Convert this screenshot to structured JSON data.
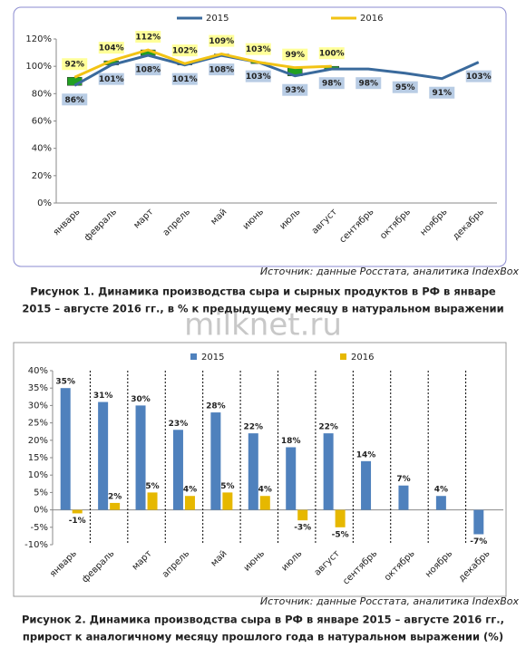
{
  "watermark": "milknet.ru",
  "chart_data": [
    {
      "type": "line",
      "categories": [
        "январь",
        "февраль",
        "март",
        "апрель",
        "май",
        "июнь",
        "июль",
        "август",
        "сентябрь",
        "октябрь",
        "ноябрь",
        "декабрь"
      ],
      "series": [
        {
          "name": "2015",
          "color": "#3a6a9c",
          "label_bg": "#b8cce4",
          "values": [
            86,
            101,
            108,
            101,
            108,
            103,
            93,
            98,
            98,
            95,
            91,
            103
          ],
          "value_labels": [
            "86%",
            "101%",
            "108%",
            "101%",
            "108%",
            "103%",
            "93%",
            "98%",
            "98%",
            "95%",
            "91%",
            "103%"
          ]
        },
        {
          "name": "2016",
          "color": "#f2c314",
          "label_bg": "#ffff99",
          "values": [
            92,
            104,
            112,
            102,
            109,
            103,
            99,
            100,
            null,
            null,
            null,
            null
          ],
          "value_labels": [
            "92%",
            "104%",
            "112%",
            "102%",
            "109%",
            "103%",
            "99%",
            "100%",
            null,
            null,
            null,
            null
          ]
        }
      ],
      "up_color": "#22a022",
      "down_color": "#e01010",
      "ylim": [
        0,
        120
      ],
      "yticks": [
        {
          "value": 0,
          "label": "0%"
        },
        {
          "value": 20,
          "label": "20%"
        },
        {
          "value": 40,
          "label": "40%"
        },
        {
          "value": 60,
          "label": "60%"
        },
        {
          "value": 80,
          "label": "80%"
        },
        {
          "value": 100,
          "label": "100%"
        },
        {
          "value": 120,
          "label": "120%"
        }
      ],
      "grid": false,
      "source": "Источник: данные Росстата, аналитика IndexBox",
      "caption": [
        "Рисунок 1. Динамика производства сыра и сырных продуктов в РФ в январе",
        "2015 – августе 2016 гг., в % к предыдущему месяцу в натуральном выражении"
      ]
    },
    {
      "type": "bar",
      "categories": [
        "январь",
        "февраль",
        "март",
        "апрель",
        "май",
        "июнь",
        "июль",
        "август",
        "сентябрь",
        "октябрь",
        "ноябрь",
        "декабрь"
      ],
      "series": [
        {
          "name": "2015",
          "color": "#4f81bd",
          "values": [
            35,
            31,
            30,
            23,
            28,
            22,
            18,
            22,
            14,
            7,
            4,
            -7
          ],
          "value_labels": [
            "35%",
            "31%",
            "30%",
            "23%",
            "28%",
            "22%",
            "18%",
            "22%",
            "14%",
            "7%",
            "4%",
            "-7%"
          ]
        },
        {
          "name": "2016",
          "color": "#e6b800",
          "values": [
            -1,
            2,
            5,
            4,
            5,
            4,
            -3,
            -5,
            null,
            null,
            null,
            null
          ],
          "value_labels": [
            "-1%",
            "2%",
            "5%",
            "4%",
            "5%",
            "4%",
            "-3%",
            "-5%",
            null,
            null,
            null,
            null
          ]
        }
      ],
      "ylim": [
        -10,
        40
      ],
      "yticks": [
        {
          "value": -10,
          "label": "-10%"
        },
        {
          "value": -5,
          "label": "-5%"
        },
        {
          "value": 0,
          "label": "0%"
        },
        {
          "value": 5,
          "label": "5%"
        },
        {
          "value": 10,
          "label": "10%"
        },
        {
          "value": 15,
          "label": "15%"
        },
        {
          "value": 20,
          "label": "20%"
        },
        {
          "value": 25,
          "label": "25%"
        },
        {
          "value": 30,
          "label": "30%"
        },
        {
          "value": 35,
          "label": "35%"
        },
        {
          "value": 40,
          "label": "40%"
        }
      ],
      "grid": false,
      "source": "Источник: данные Росстата, аналитика IndexBox",
      "caption": [
        "Рисунок 2. Динамика производства сыра в РФ в январе 2015 – августе 2016 гг.,",
        "прирост к аналогичному месяцу прошлого года в натуральном выражении (%)"
      ]
    }
  ]
}
